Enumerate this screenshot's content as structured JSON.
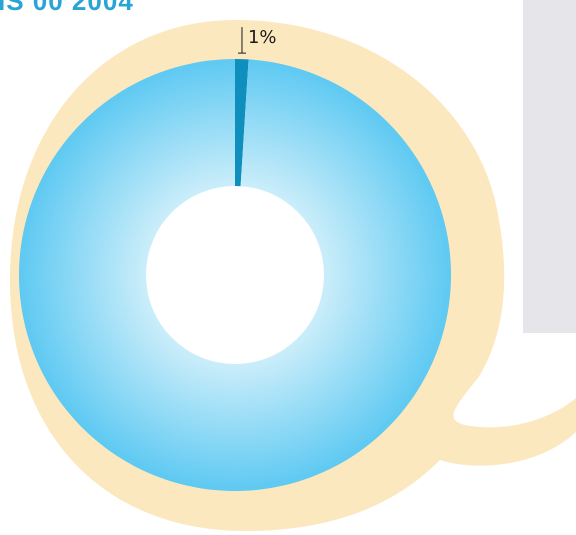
{
  "page": {
    "title_fragment": "IS 00 2004"
  },
  "colors": {
    "backdrop": "#fce8bf",
    "ring_outer": "#5ec9f2",
    "ring_inner": "#cdeefa",
    "highlight_slice": "#0f8fbd",
    "side_panel": "#e6e6ea",
    "label_text": "#1a1a1a"
  },
  "chart_data": {
    "type": "pie",
    "variant": "donut",
    "slices": [
      {
        "label": "1%",
        "value": 1,
        "color": "#0f8fbd"
      },
      {
        "label": "",
        "value": 99,
        "color": "#5ec9f2"
      }
    ],
    "legend": "none"
  }
}
